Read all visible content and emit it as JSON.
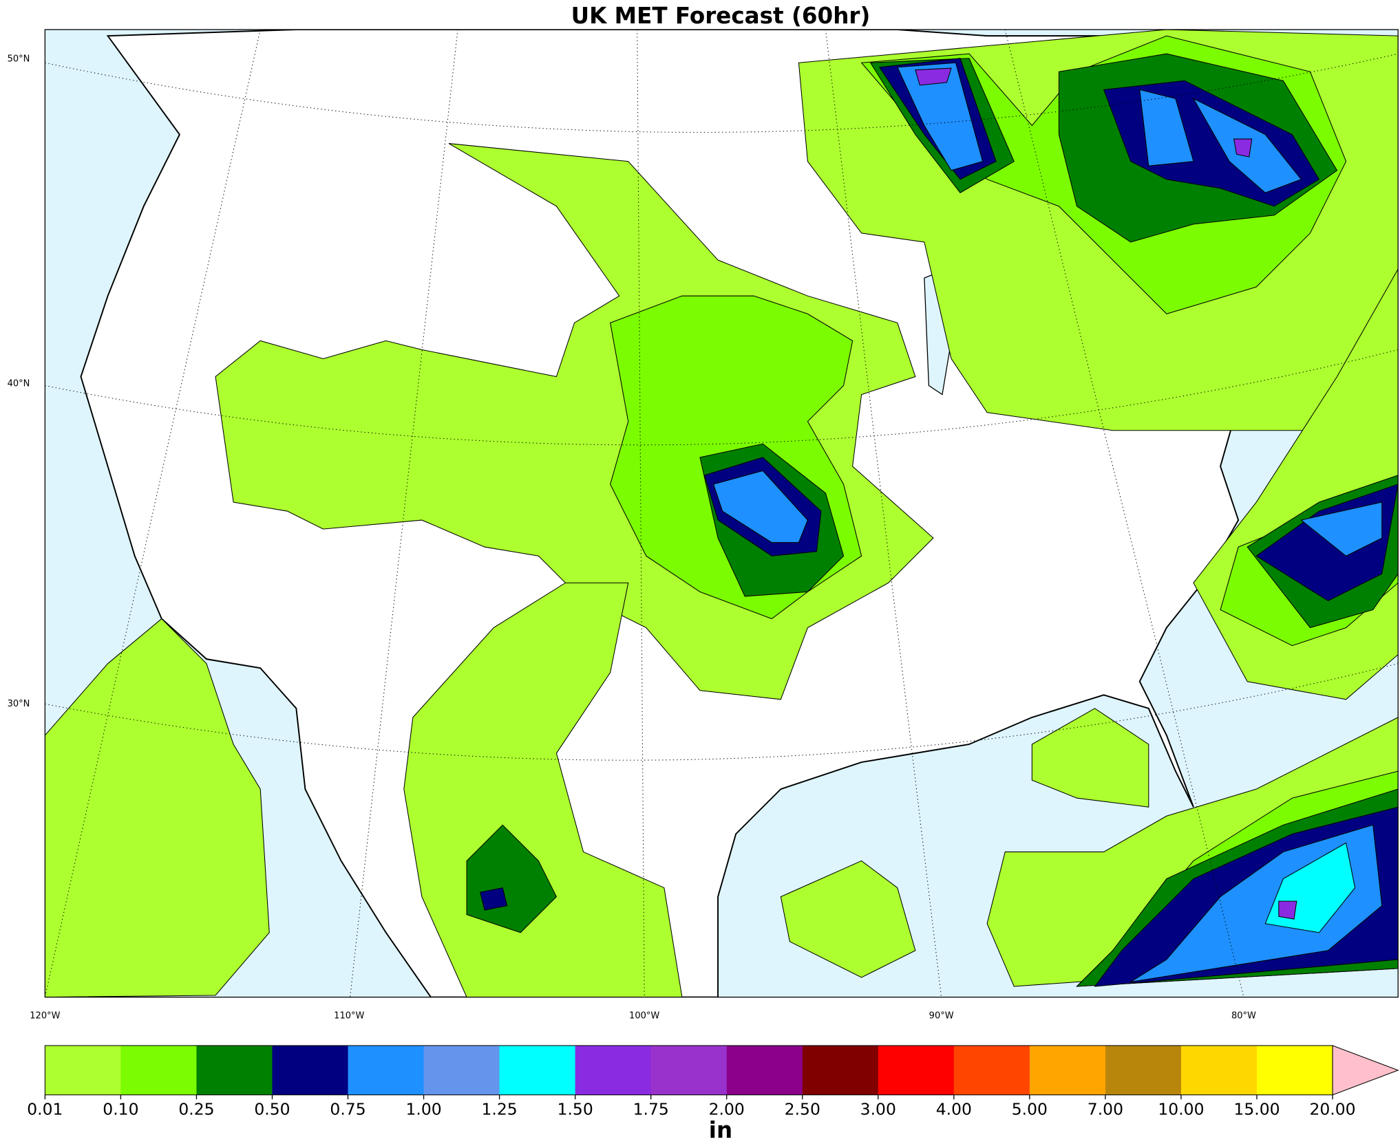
{
  "title": "UK MET Forecast (60hr)",
  "map": {
    "lat_labels": [
      "50°N",
      "40°N",
      "30°N"
    ],
    "lon_labels": [
      "120°W",
      "110°W",
      "100°W",
      "90°W",
      "80°W"
    ]
  },
  "colorbar": {
    "label": "in",
    "levels": [
      0.01,
      {
        "value": 0.1,
        "label": "0.10"
      },
      0.25,
      {
        "value": 0.5,
        "label": "0.50"
      },
      0.75,
      {
        "value": 1,
        "label": "1.00"
      },
      1.25,
      {
        "value": 1.5,
        "label": "1.50"
      },
      1.75,
      {
        "value": 2,
        "label": "2.00"
      },
      {
        "value": 2.5,
        "label": "2.50"
      },
      {
        "value": 3,
        "label": "3.00"
      },
      {
        "value": 4,
        "label": "4.00"
      },
      {
        "value": 5,
        "label": "5.00"
      },
      {
        "value": 7,
        "label": "7.00"
      },
      {
        "value": 10,
        "label": "10.00"
      },
      {
        "value": 15,
        "label": "15.00"
      },
      {
        "value": 20,
        "label": "20.00"
      }
    ],
    "colors": [
      "#adff2f",
      "#7cfc00",
      "#008000",
      "#000080",
      "#1e90ff",
      "#6495ed",
      "#00ffff",
      "#8a2be2",
      "#9932cc",
      "#8b008b",
      "#800000",
      "#ff0000",
      "#ff4500",
      "#ffa500",
      "#b8860b",
      "#ffd700",
      "#ffff00"
    ],
    "extend_color": "#ffc0cb"
  }
}
